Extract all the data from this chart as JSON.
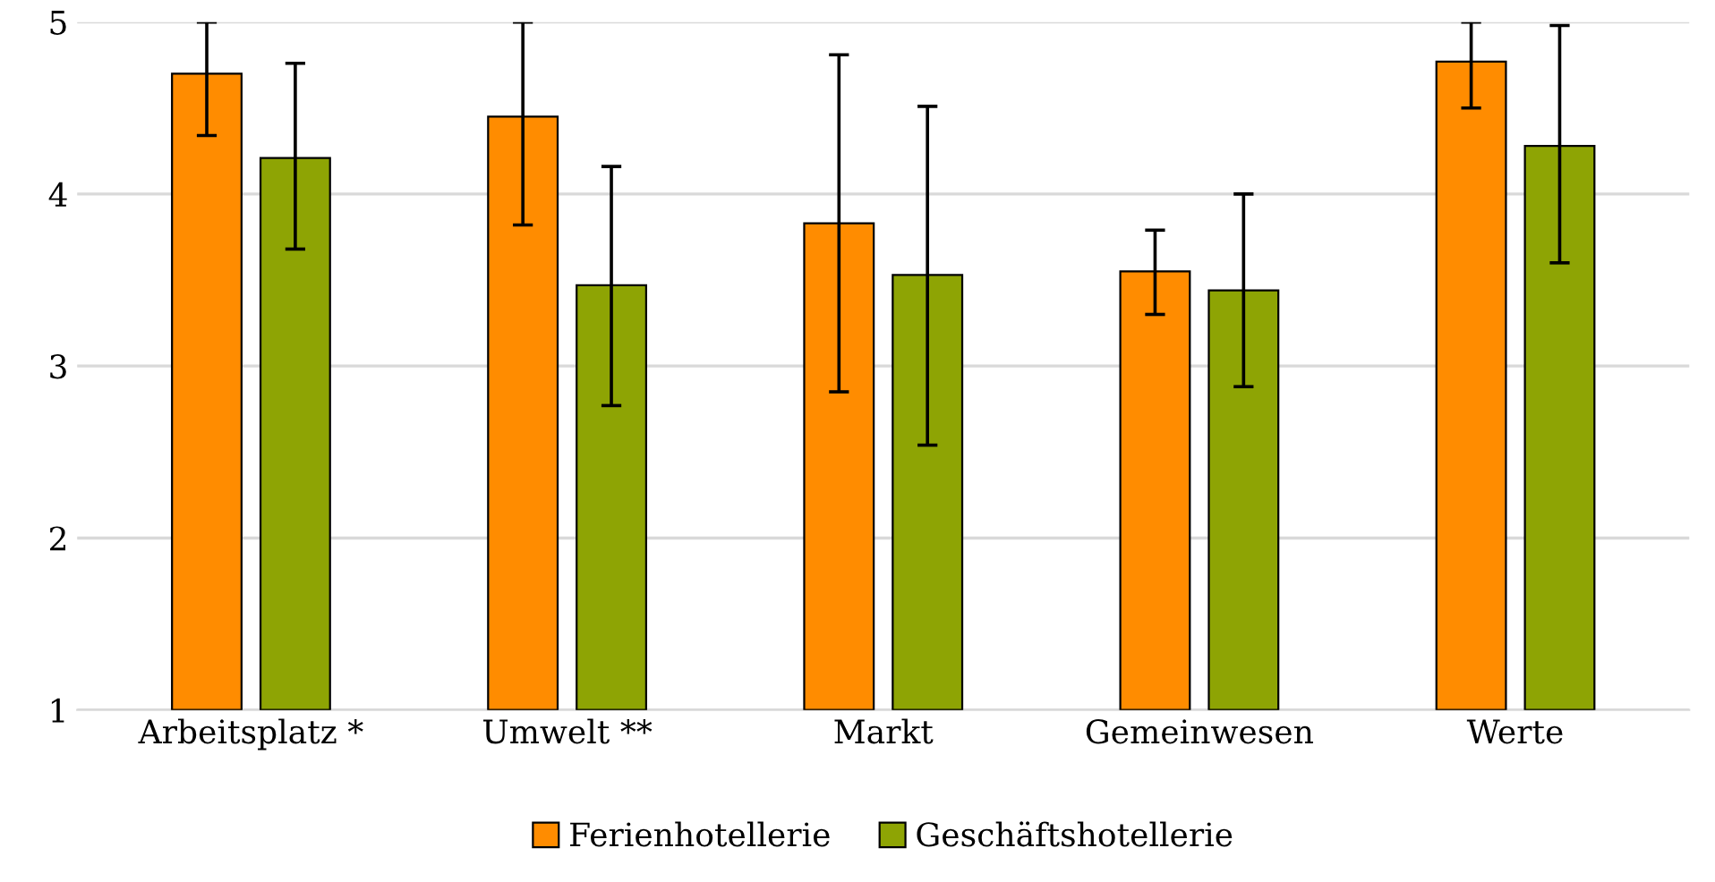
{
  "chart_data": {
    "type": "bar",
    "categories": [
      "Arbeitsplatz *",
      "Umwelt **",
      "Markt",
      "Gemeinwesen",
      "Werte"
    ],
    "series": [
      {
        "name": "Ferienhotellerie",
        "color": "#ff8c00",
        "values": [
          4.7,
          4.45,
          3.83,
          3.55,
          4.77
        ],
        "errors": [
          [
            4.34,
            5
          ],
          [
            3.82,
            5
          ],
          [
            2.85,
            4.81
          ],
          [
            3.3,
            3.79
          ],
          [
            4.5,
            5
          ]
        ]
      },
      {
        "name": "Geschäftshotellerie",
        "color": "#8ea404",
        "values": [
          4.21,
          3.47,
          3.53,
          3.44,
          4.28
        ],
        "errors": [
          [
            3.68,
            4.76
          ],
          [
            2.77,
            4.16
          ],
          [
            2.54,
            4.51
          ],
          [
            2.88,
            4.0
          ],
          [
            3.6,
            4.98
          ]
        ]
      }
    ],
    "ylim": [
      1,
      5
    ],
    "yticks": [
      1,
      2,
      3,
      4,
      5
    ],
    "grid": "y",
    "legend": "bottom"
  }
}
